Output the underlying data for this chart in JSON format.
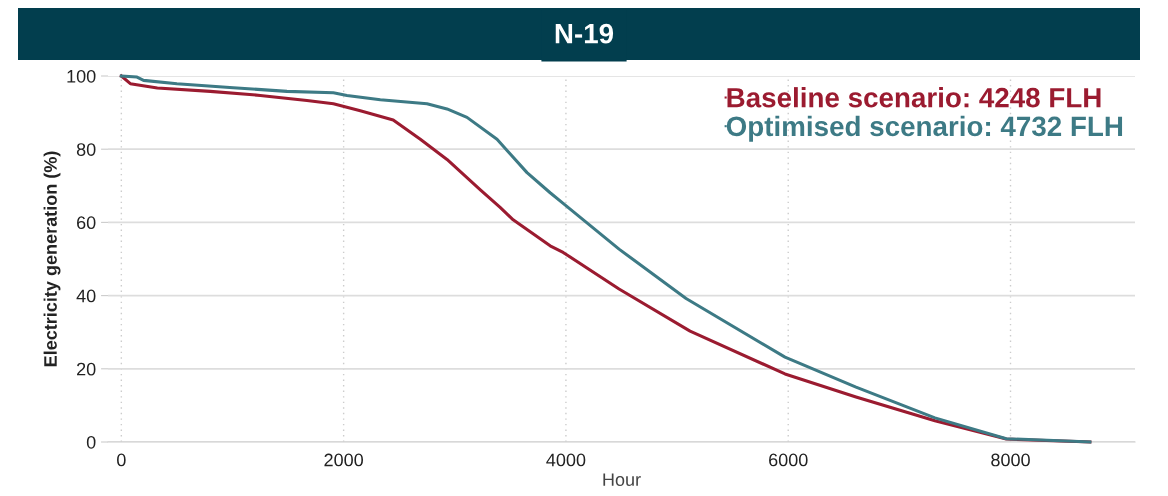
{
  "chart_data": {
    "type": "line",
    "title": "N-19",
    "xlabel": "Hour",
    "ylabel": "Electricity generation (%)",
    "xlim": [
      -120,
      9120
    ],
    "xticks": [
      0,
      2000,
      4000,
      6000,
      8000
    ],
    "ylim": [
      0,
      100
    ],
    "yticks": [
      0,
      20,
      40,
      60,
      80,
      100
    ],
    "grid": true,
    "legend": "top right",
    "line_style": "solid",
    "marker": "none",
    "series": [
      {
        "name": "Baseline scenario: 4248 FLH",
        "color": "#9b1b30",
        "x": [
          0,
          81,
          324,
          800,
          1250,
          1670,
          1908,
          2150,
          2446,
          2690,
          2930,
          3230,
          3408,
          3525,
          3858,
          3975,
          4478,
          5117,
          5971,
          6610,
          7320,
          7962,
          8714
        ],
        "values": [
          100,
          97.9,
          96.7,
          95.8,
          94.7,
          93.3,
          92.4,
          90.5,
          88,
          82.7,
          77.2,
          68.9,
          64.1,
          60.7,
          53.6,
          51.8,
          41.8,
          30.3,
          18.6,
          12.3,
          5.8,
          0.8,
          0
        ]
      },
      {
        "name": "Optimised scenario: 4732 FLH",
        "color": "#3d7a85",
        "x": [
          0,
          141,
          200,
          500,
          1007,
          1490,
          1908,
          2030,
          2330,
          2750,
          2930,
          3110,
          3380,
          3650,
          3858,
          3975,
          4478,
          5081,
          5971,
          6610,
          7320,
          7962,
          8714
        ],
        "values": [
          100,
          99.7,
          98.8,
          97.9,
          96.8,
          95.8,
          95.4,
          94.7,
          93.5,
          92.4,
          91,
          88.7,
          82.7,
          73.6,
          68.1,
          65.2,
          52.7,
          39.2,
          23.2,
          15,
          6.6,
          0.9,
          0
        ]
      }
    ]
  }
}
